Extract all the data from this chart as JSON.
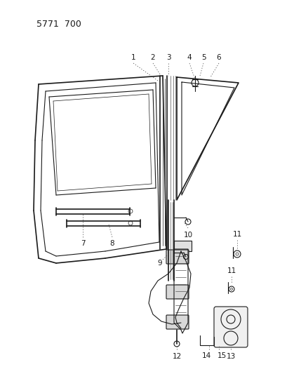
{
  "title": "5771  700",
  "bg_color": "#ffffff",
  "line_color": "#1a1a1a",
  "label_color": "#1a1a1a",
  "fig_width": 4.29,
  "fig_height": 5.33,
  "dpi": 100
}
